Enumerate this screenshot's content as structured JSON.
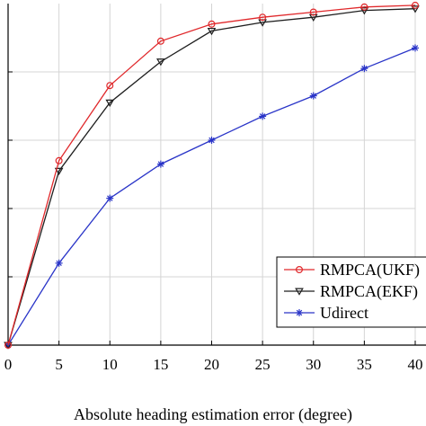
{
  "chart_data": {
    "type": "line",
    "title": "",
    "xlabel": "Absolute heading estimation error (degree)",
    "ylabel": "",
    "x": [
      0,
      5,
      10,
      15,
      20,
      25,
      30,
      35,
      40
    ],
    "xlim": [
      0,
      40
    ],
    "ylim": [
      0,
      1
    ],
    "xticks": [
      "0",
      "5",
      "10",
      "15",
      "20",
      "25",
      "30",
      "35",
      "40"
    ],
    "grid": true,
    "legend_position": "lower-right",
    "series": [
      {
        "name": "RMPCA(UKF)",
        "color": "#e0282b",
        "marker": "circle",
        "values": [
          0.0,
          0.54,
          0.76,
          0.89,
          0.94,
          0.96,
          0.975,
          0.99,
          0.995
        ]
      },
      {
        "name": "RMPCA(EKF)",
        "color": "#1e1e1e",
        "marker": "triangle-down",
        "values": [
          0.0,
          0.51,
          0.71,
          0.83,
          0.92,
          0.945,
          0.96,
          0.98,
          0.985
        ]
      },
      {
        "name": "Udirect",
        "color": "#2a35c8",
        "marker": "asterisk",
        "values": [
          0.0,
          0.24,
          0.43,
          0.53,
          0.6,
          0.67,
          0.73,
          0.81,
          0.87
        ]
      }
    ]
  }
}
